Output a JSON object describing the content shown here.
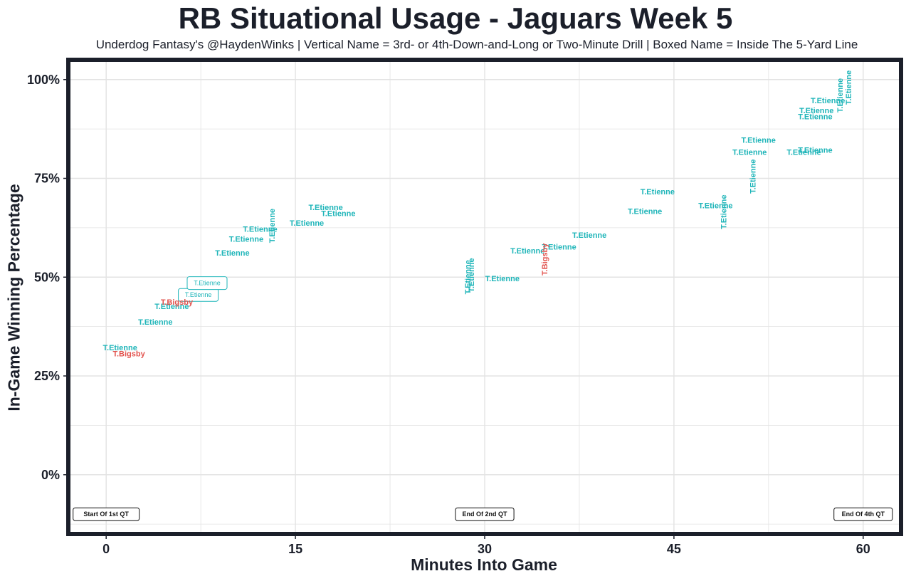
{
  "chart_data": {
    "type": "scatter",
    "title": "RB Situational Usage - Jaguars Week 5",
    "subtitle": "Underdog Fantasy's @HaydenWinks | Vertical Name = 3rd- or 4th-Down-and-Long or Two-Minute Drill | Boxed Name = Inside The 5-Yard Line",
    "xlabel": "Minutes Into Game",
    "ylabel": "In-Game Winning Percentage",
    "xlim": [
      -3,
      63
    ],
    "ylim": [
      -15,
      105
    ],
    "xticks": [
      "0",
      "15",
      "30",
      "45",
      "60"
    ],
    "yticks": [
      "0%",
      "25%",
      "50%",
      "75%",
      "100%"
    ],
    "grid": true,
    "colors": {
      "T.Etienne": "#1fb5b9",
      "T.Bigsby": "#e2534e",
      "frame": "#1b1f2a"
    },
    "series": [
      {
        "name": "T.Etienne",
        "points": [
          {
            "x": 1.1,
            "y": 32,
            "label": "T.Etienne",
            "style": "normal"
          },
          {
            "x": 3.9,
            "y": 38.5,
            "label": "T.Etienne",
            "style": "normal"
          },
          {
            "x": 5.2,
            "y": 42.5,
            "label": "T.Etienne",
            "style": "normal"
          },
          {
            "x": 7.3,
            "y": 45.5,
            "label": "T.Etienne",
            "style": "boxed"
          },
          {
            "x": 8.0,
            "y": 48.5,
            "label": "T.Etienne",
            "style": "boxed"
          },
          {
            "x": 10.0,
            "y": 56,
            "label": "T.Etienne",
            "style": "normal"
          },
          {
            "x": 11.1,
            "y": 59.5,
            "label": "T.Etienne",
            "style": "normal"
          },
          {
            "x": 12.2,
            "y": 62,
            "label": "T.Etienne",
            "style": "normal"
          },
          {
            "x": 13.2,
            "y": 63,
            "label": "T.Etienne",
            "style": "vertical"
          },
          {
            "x": 15.9,
            "y": 63.5,
            "label": "T.Etienne",
            "style": "normal"
          },
          {
            "x": 17.4,
            "y": 67.5,
            "label": "T.Etienne",
            "style": "normal"
          },
          {
            "x": 18.4,
            "y": 66,
            "label": "T.Etienne",
            "style": "normal"
          },
          {
            "x": 28.7,
            "y": 50,
            "label": "T.Etienne",
            "style": "vertical"
          },
          {
            "x": 29.0,
            "y": 50.5,
            "label": "T.Etienne",
            "style": "vertical"
          },
          {
            "x": 31.4,
            "y": 49.5,
            "label": "T.Etienne",
            "style": "normal"
          },
          {
            "x": 33.4,
            "y": 56.5,
            "label": "T.Etienne",
            "style": "normal"
          },
          {
            "x": 35.9,
            "y": 57.5,
            "label": "T.Etienne",
            "style": "normal"
          },
          {
            "x": 38.3,
            "y": 60.5,
            "label": "T.Etienne",
            "style": "normal"
          },
          {
            "x": 42.7,
            "y": 66.5,
            "label": "T.Etienne",
            "style": "normal"
          },
          {
            "x": 43.7,
            "y": 71.5,
            "label": "T.Etienne",
            "style": "normal"
          },
          {
            "x": 48.3,
            "y": 68,
            "label": "T.Etienne",
            "style": "normal"
          },
          {
            "x": 49.0,
            "y": 66.5,
            "label": "T.Etienne",
            "style": "vertical"
          },
          {
            "x": 51.0,
            "y": 81.5,
            "label": "T.Etienne",
            "style": "normal"
          },
          {
            "x": 51.3,
            "y": 75.5,
            "label": "T.Etienne",
            "style": "vertical"
          },
          {
            "x": 51.7,
            "y": 84.5,
            "label": "T.Etienne",
            "style": "normal"
          },
          {
            "x": 55.3,
            "y": 81.5,
            "label": "T.Etienne",
            "style": "normal"
          },
          {
            "x": 56.2,
            "y": 82,
            "label": "T.Etienne",
            "style": "normal"
          },
          {
            "x": 56.2,
            "y": 90.5,
            "label": "T.Etienne",
            "style": "normal"
          },
          {
            "x": 56.3,
            "y": 92,
            "label": "T.Etienne",
            "style": "normal"
          },
          {
            "x": 57.2,
            "y": 94.5,
            "label": "T.Etienne",
            "style": "normal"
          },
          {
            "x": 58.2,
            "y": 96,
            "label": "T.Etienne",
            "style": "vertical"
          },
          {
            "x": 58.9,
            "y": 98,
            "label": "T.Etienne",
            "style": "vertical"
          }
        ]
      },
      {
        "name": "T.Bigsby",
        "points": [
          {
            "x": 1.8,
            "y": 30.5,
            "label": "T.Bigsby",
            "style": "normal"
          },
          {
            "x": 5.6,
            "y": 43.5,
            "label": "T.Bigsby",
            "style": "normal"
          },
          {
            "x": 34.8,
            "y": 54.5,
            "label": "T.Bigsby",
            "style": "vertical"
          }
        ]
      }
    ],
    "annotations": [
      {
        "x": 0,
        "y": -10,
        "text": "Start Of 1st QT"
      },
      {
        "x": 30,
        "y": -10,
        "text": "End Of 2nd QT"
      },
      {
        "x": 60,
        "y": -10,
        "text": "End Of 4th QT"
      }
    ]
  }
}
